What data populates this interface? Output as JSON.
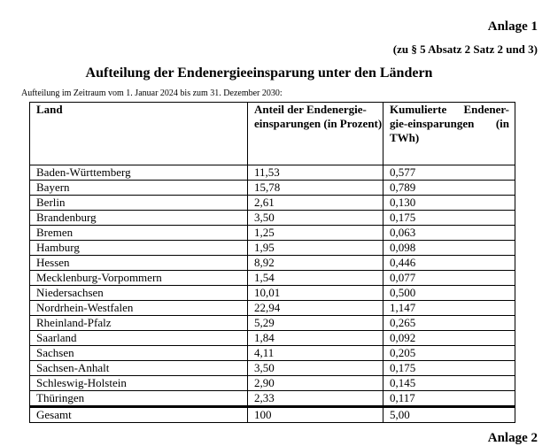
{
  "header": {
    "anlage": "Anlage 1",
    "reference": "(zu § 5 Absatz 2 Satz 2 und 3)",
    "title": "Aufteilung der Endenergieeinsparung unter den Ländern",
    "period": "Aufteilung im Zeitraum vom 1. Januar 2024 bis zum 31. Dezember 2030:"
  },
  "table": {
    "columns": [
      "Land",
      "Anteil der Endenergie-einsparungen (in Prozent)",
      "Kumulierte Endener-gie-einsparungen (in TWh)"
    ],
    "rows": [
      [
        "Baden-Württemberg",
        "11,53",
        "0,577"
      ],
      [
        "Bayern",
        "15,78",
        "0,789"
      ],
      [
        "Berlin",
        "2,61",
        "0,130"
      ],
      [
        "Brandenburg",
        "3,50",
        "0,175"
      ],
      [
        "Bremen",
        "1,25",
        "0,063"
      ],
      [
        "Hamburg",
        "1,95",
        "0,098"
      ],
      [
        "Hessen",
        "8,92",
        "0,446"
      ],
      [
        "Mecklenburg-Vorpommern",
        "1,54",
        "0,077"
      ],
      [
        "Niedersachsen",
        "10,01",
        "0,500"
      ],
      [
        "Nordrhein-Westfalen",
        "22,94",
        "1,147"
      ],
      [
        "Rheinland-Pfalz",
        "5,29",
        "0,265"
      ],
      [
        "Saarland",
        "1,84",
        "0,092"
      ],
      [
        "Sachsen",
        "4,11",
        "0,205"
      ],
      [
        "Sachsen-Anhalt",
        "3,50",
        "0,175"
      ],
      [
        "Schleswig-Holstein",
        "2,90",
        "0,145"
      ],
      [
        "Thüringen",
        "2,33",
        "0,117"
      ]
    ],
    "total": [
      "Gesamt",
      "100",
      "5,00"
    ]
  },
  "next_anlage": "Anlage 2"
}
